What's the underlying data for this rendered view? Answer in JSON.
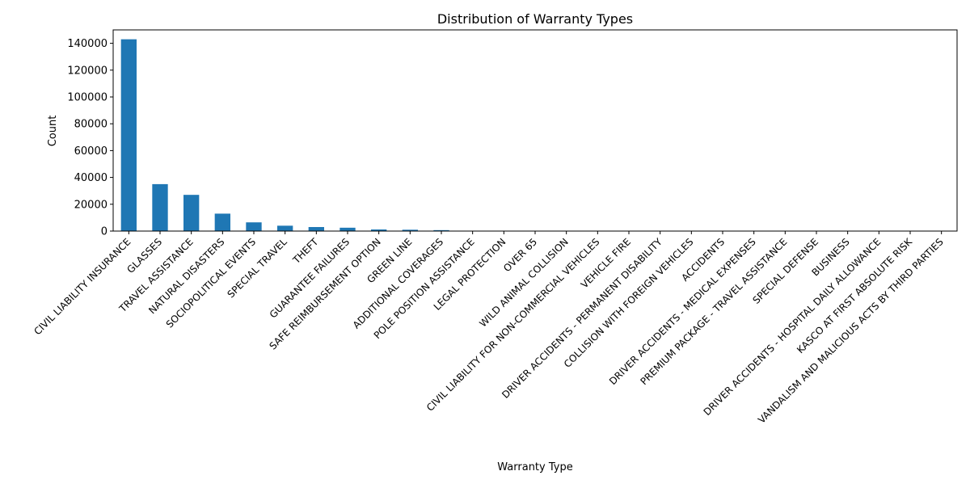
{
  "chart_data": {
    "type": "bar",
    "title": "Distribution of Warranty Types",
    "xlabel": "Warranty Type",
    "ylabel": "Count",
    "ylim": [
      0,
      150000
    ],
    "yticks": [
      "0",
      "20000",
      "40000",
      "60000",
      "80000",
      "100000",
      "120000",
      "140000"
    ],
    "grid": false,
    "bar_color": "#1f77b4",
    "categories": [
      "CIVIL LIABILITY INSURANCE",
      "GLASSES",
      "TRAVEL ASSISTANCE",
      "NATURAL DISASTERS",
      "SOCIOPOLITICAL EVENTS",
      "SPECIAL TRAVEL",
      "THEFT",
      "GUARANTEE FAILURES",
      "SAFE REIMBURSEMENT OPTION",
      "GREEN LINE",
      "ADDITIONAL COVERAGES",
      "POLE POSITION ASSISTANCE",
      "LEGAL PROTECTION",
      "OVER 65",
      "WILD ANIMAL COLLISION",
      "CIVIL LIABILITY FOR NON-COMMERCIAL VEHICLES",
      "VEHICLE FIRE",
      "DRIVER ACCIDENTS - PERMANENT DISABILITY",
      "COLLISION WITH FOREIGN VEHICLES",
      "ACCIDENTS",
      "DRIVER ACCIDENTS - MEDICAL EXPENSES",
      "PREMIUM PACKAGE - TRAVEL ASSISTANCE",
      "SPECIAL DEFENSE",
      "BUSINESS",
      "DRIVER ACCIDENTS - HOSPITAL DAILY ALLOWANCE",
      "KASCO AT FIRST ABSOLUTE RISK",
      "VANDALISM AND MALICIOUS ACTS BY THIRD PARTIES"
    ],
    "values": [
      143000,
      35000,
      27000,
      13000,
      6500,
      4000,
      3000,
      2500,
      1200,
      1000,
      700,
      300,
      250,
      200,
      150,
      120,
      100,
      80,
      60,
      50,
      40,
      30,
      25,
      20,
      15,
      10,
      5
    ]
  }
}
